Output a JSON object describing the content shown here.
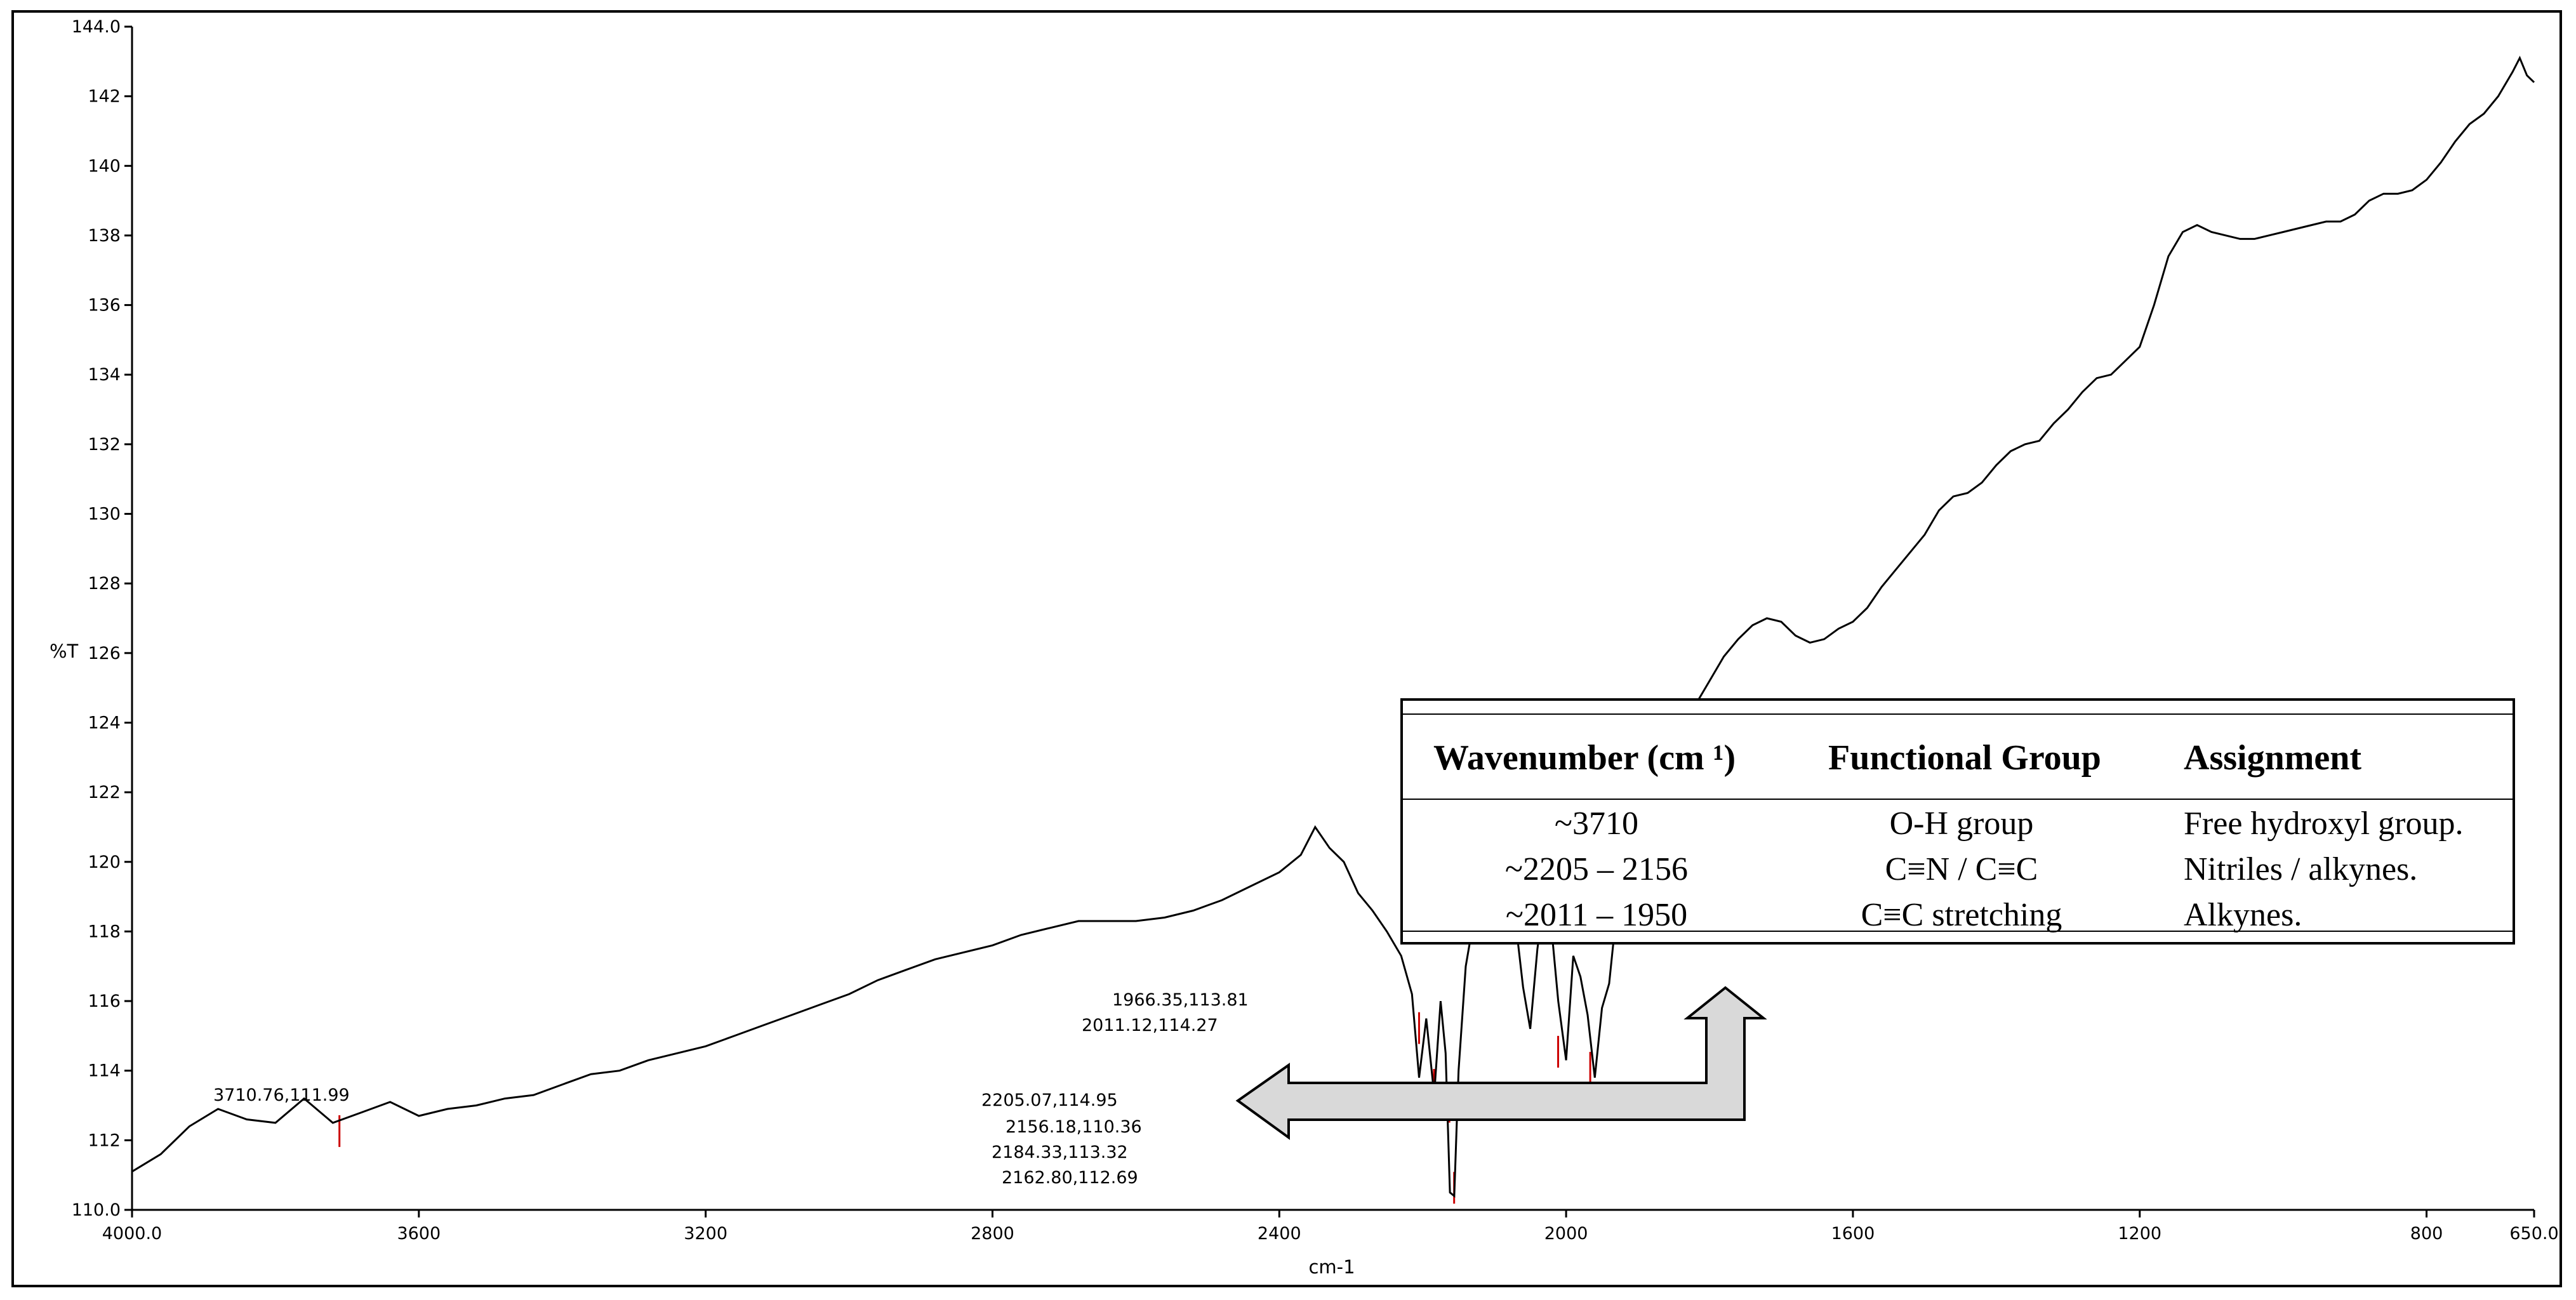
{
  "chart_data": {
    "type": "line",
    "xlabel": "cm-1",
    "ylabel": "%T",
    "xlim": [
      4000.0,
      650.0
    ],
    "ylim": [
      110.0,
      144.0
    ],
    "x_reversed": true,
    "x_ticks": [
      "4000.0",
      "3600",
      "3200",
      "2800",
      "2400",
      "2000",
      "1600",
      "1200",
      "800",
      "650.0"
    ],
    "y_ticks": [
      "110.0",
      "112",
      "114",
      "116",
      "118",
      "120",
      "122",
      "124",
      "126",
      "128",
      "130",
      "132",
      "134",
      "136",
      "138",
      "140",
      "142",
      "144.0"
    ],
    "series": [
      {
        "x": [
          4000,
          3960,
          3920,
          3880,
          3840,
          3800,
          3760,
          3720,
          3680,
          3640,
          3600,
          3560,
          3520,
          3480,
          3440,
          3400,
          3360,
          3320,
          3280,
          3240,
          3200,
          3160,
          3120,
          3080,
          3040,
          3000,
          2960,
          2920,
          2880,
          2840,
          2800,
          2760,
          2720,
          2680,
          2640,
          2600,
          2560,
          2520,
          2480,
          2440,
          2400,
          2370,
          2350,
          2330,
          2310,
          2290,
          2270,
          2250,
          2230,
          2215,
          2205,
          2195,
          2184,
          2175,
          2168,
          2162,
          2156,
          2150,
          2140,
          2125,
          2110,
          2095,
          2080,
          2070,
          2060,
          2050,
          2040,
          2030,
          2020,
          2011,
          2000,
          1990,
          1980,
          1970,
          1960,
          1950,
          1940,
          1930,
          1920,
          1910,
          1900,
          1880,
          1860,
          1840,
          1820,
          1800,
          1780,
          1760,
          1740,
          1720,
          1700,
          1680,
          1660,
          1640,
          1620,
          1600,
          1580,
          1560,
          1540,
          1520,
          1500,
          1480,
          1460,
          1440,
          1420,
          1400,
          1380,
          1360,
          1340,
          1320,
          1300,
          1280,
          1260,
          1240,
          1220,
          1200,
          1180,
          1160,
          1140,
          1120,
          1100,
          1080,
          1060,
          1040,
          1020,
          1000,
          980,
          960,
          940,
          920,
          900,
          880,
          860,
          840,
          820,
          800,
          780,
          760,
          740,
          720,
          700,
          680,
          670,
          660,
          650
        ],
        "values": [
          111.1,
          111.6,
          112.4,
          112.9,
          112.6,
          112.5,
          113.2,
          112.5,
          112.8,
          113.1,
          112.7,
          112.9,
          113.0,
          113.2,
          113.3,
          113.6,
          113.9,
          114.0,
          114.3,
          114.5,
          114.7,
          115.0,
          115.3,
          115.6,
          115.9,
          116.2,
          116.6,
          116.9,
          117.2,
          117.4,
          117.6,
          117.9,
          118.1,
          118.3,
          118.3,
          118.3,
          118.4,
          118.6,
          118.9,
          119.3,
          119.7,
          120.2,
          121.0,
          120.4,
          120.0,
          119.1,
          118.6,
          118.0,
          117.3,
          116.2,
          113.8,
          115.5,
          113.3,
          116.0,
          114.5,
          110.5,
          110.4,
          114.0,
          117.0,
          118.8,
          119.6,
          120.1,
          119.3,
          118.2,
          116.4,
          115.2,
          117.5,
          119.0,
          118.0,
          116.0,
          114.3,
          117.3,
          116.7,
          115.6,
          113.8,
          115.8,
          116.5,
          118.5,
          121.5,
          121.5,
          121.9,
          122.5,
          123.2,
          123.8,
          124.5,
          125.2,
          125.9,
          126.4,
          126.8,
          127.0,
          126.9,
          126.5,
          126.3,
          126.4,
          126.7,
          126.9,
          127.3,
          127.9,
          128.4,
          128.9,
          129.4,
          130.1,
          130.5,
          130.6,
          130.9,
          131.4,
          131.8,
          132.0,
          132.1,
          132.6,
          133.0,
          133.5,
          133.9,
          134.0,
          134.4,
          134.8,
          136.0,
          137.4,
          138.1,
          138.3,
          138.1,
          138.0,
          137.9,
          137.9,
          138.0,
          138.1,
          138.2,
          138.3,
          138.4,
          138.4,
          138.6,
          139.0,
          139.2,
          139.2,
          139.3,
          139.6,
          140.1,
          140.7,
          141.2,
          141.5,
          142.0,
          142.7,
          143.1,
          142.6,
          142.4
        ]
      }
    ],
    "peaks": [
      {
        "x": 3710.76,
        "y": 111.99,
        "label": "3710.76,111.99"
      },
      {
        "x": 2205.07,
        "y": 114.95,
        "label": "2205.07,114.95"
      },
      {
        "x": 2184.33,
        "y": 113.32,
        "label": "2184.33,113.32"
      },
      {
        "x": 2162.8,
        "y": 112.69,
        "label": "2162.80,112.69"
      },
      {
        "x": 2156.18,
        "y": 110.36,
        "label": "2156.18,110.36"
      },
      {
        "x": 2011.12,
        "y": 114.27,
        "label": "2011.12,114.27"
      },
      {
        "x": 1966.35,
        "y": 113.81,
        "label": "1966.35,113.81"
      }
    ],
    "colors": {
      "line": "#000000",
      "peak_marker": "#cc0000",
      "arrow_fill": "#d9d9d9"
    }
  },
  "table": {
    "headers": [
      "Wavenumber (cm ¹)",
      "Functional Group",
      "Assignment"
    ],
    "rows": [
      [
        "~3710",
        "O-H group",
        "Free hydroxyl group."
      ],
      [
        "~2205 – 2156",
        "C≡N / C≡C",
        "Nitriles / alkynes."
      ],
      [
        "~2011 – 1950",
        "C≡C stretching",
        "Alkynes."
      ]
    ]
  }
}
